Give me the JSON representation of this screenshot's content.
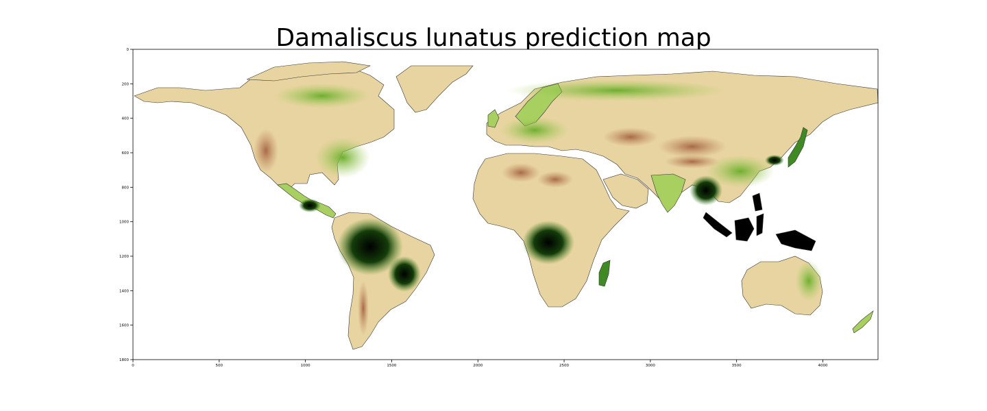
{
  "title": "Damaliscus lunatus prediction map",
  "colors": {
    "background": "#ffffff",
    "ocean": "#ffffff",
    "low": "#e8d4a0",
    "arid": "#a86a48",
    "mid": "#a8d060",
    "green": "#3f8a22",
    "high": "#000000"
  },
  "chart_data": {
    "type": "heatmap",
    "title": "Damaliscus lunatus prediction map",
    "xlabel": "",
    "ylabel": "",
    "xlim": [
      0,
      4320
    ],
    "ylim": [
      1800,
      0
    ],
    "xticks": [
      0,
      500,
      1000,
      1500,
      2000,
      2500,
      3000,
      3500,
      4000
    ],
    "yticks": [
      0,
      200,
      400,
      600,
      800,
      1000,
      1200,
      1400,
      1600,
      1800
    ],
    "grid": false
  }
}
